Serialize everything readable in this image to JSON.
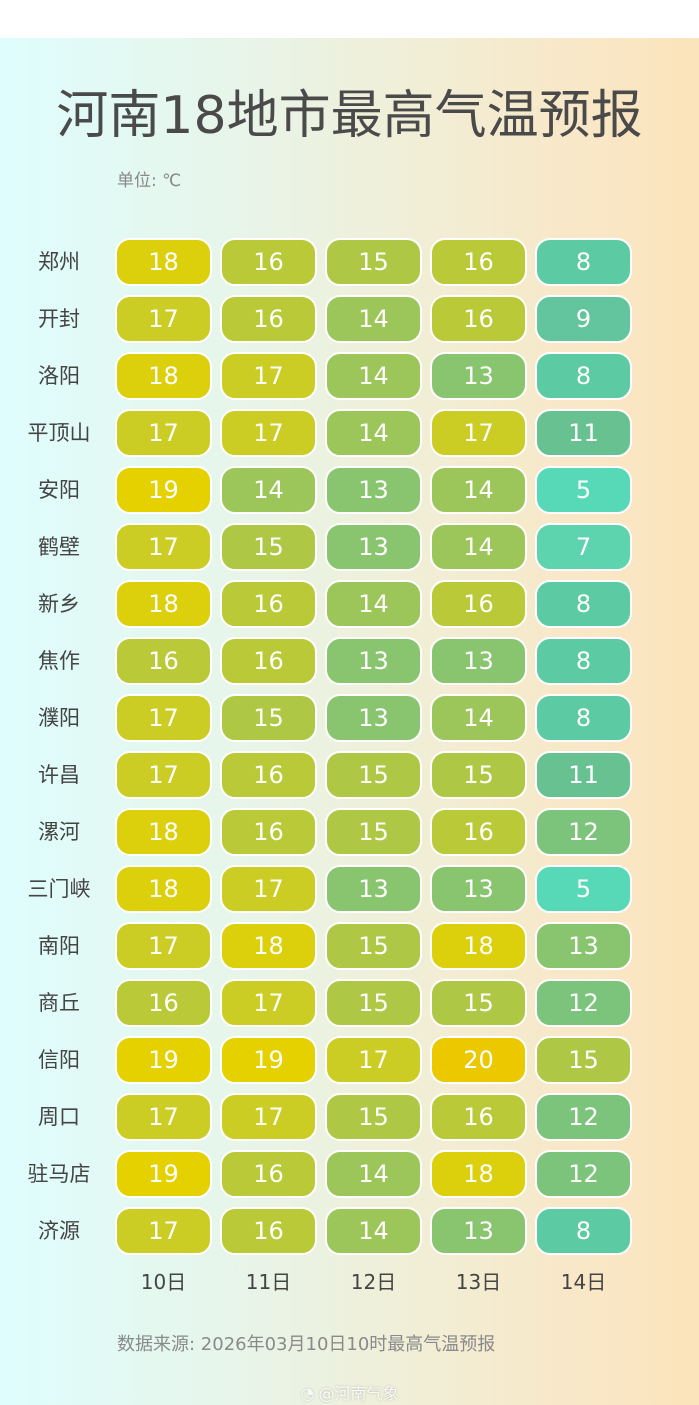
{
  "header": {
    "title": "河南18地市最高气温预报",
    "unit": "单位: ℃"
  },
  "footer": {
    "source": "数据来源: 2026年03月10日10时最高气温预报",
    "watermark": "@河南气象",
    "watermark_icon": "weibo-icon"
  },
  "colors": {
    "5": "#57d8b6",
    "7": "#5dd3ae",
    "8": "#5ccba4",
    "9": "#62c59e",
    "11": "#68c190",
    "12": "#7cc47c",
    "13": "#89c56f",
    "14": "#9dc65a",
    "15": "#aec845",
    "16": "#b9c937",
    "17": "#cccd24",
    "18": "#dccf0b",
    "19": "#e5d000",
    "20": "#ebc800"
  },
  "chart_data": {
    "type": "heatmap",
    "title": "河南18地市最高气温预报",
    "unit": "℃",
    "xlabel": "",
    "ylabel": "",
    "columns": [
      "10日",
      "11日",
      "12日",
      "13日",
      "14日"
    ],
    "rows": [
      {
        "city": "郑州",
        "values": [
          18,
          16,
          15,
          16,
          8
        ]
      },
      {
        "city": "开封",
        "values": [
          17,
          16,
          14,
          16,
          9
        ]
      },
      {
        "city": "洛阳",
        "values": [
          18,
          17,
          14,
          13,
          8
        ]
      },
      {
        "city": "平顶山",
        "values": [
          17,
          17,
          14,
          17,
          11
        ]
      },
      {
        "city": "安阳",
        "values": [
          19,
          14,
          13,
          14,
          5
        ]
      },
      {
        "city": "鹤壁",
        "values": [
          17,
          15,
          13,
          14,
          7
        ]
      },
      {
        "city": "新乡",
        "values": [
          18,
          16,
          14,
          16,
          8
        ]
      },
      {
        "city": "焦作",
        "values": [
          16,
          16,
          13,
          13,
          8
        ]
      },
      {
        "city": "濮阳",
        "values": [
          17,
          15,
          13,
          14,
          8
        ]
      },
      {
        "city": "许昌",
        "values": [
          17,
          16,
          15,
          15,
          11
        ]
      },
      {
        "city": "漯河",
        "values": [
          18,
          16,
          15,
          16,
          12
        ]
      },
      {
        "city": "三门峡",
        "values": [
          18,
          17,
          13,
          13,
          5
        ]
      },
      {
        "city": "南阳",
        "values": [
          17,
          18,
          15,
          18,
          13
        ]
      },
      {
        "city": "商丘",
        "values": [
          16,
          17,
          15,
          15,
          12
        ]
      },
      {
        "city": "信阳",
        "values": [
          19,
          19,
          17,
          20,
          15
        ]
      },
      {
        "city": "周口",
        "values": [
          17,
          17,
          15,
          16,
          12
        ]
      },
      {
        "city": "驻马店",
        "values": [
          19,
          16,
          14,
          18,
          12
        ]
      },
      {
        "city": "济源",
        "values": [
          17,
          16,
          14,
          13,
          8
        ]
      }
    ],
    "source": "数据来源: 2026年03月10日10时最高气温预报"
  }
}
